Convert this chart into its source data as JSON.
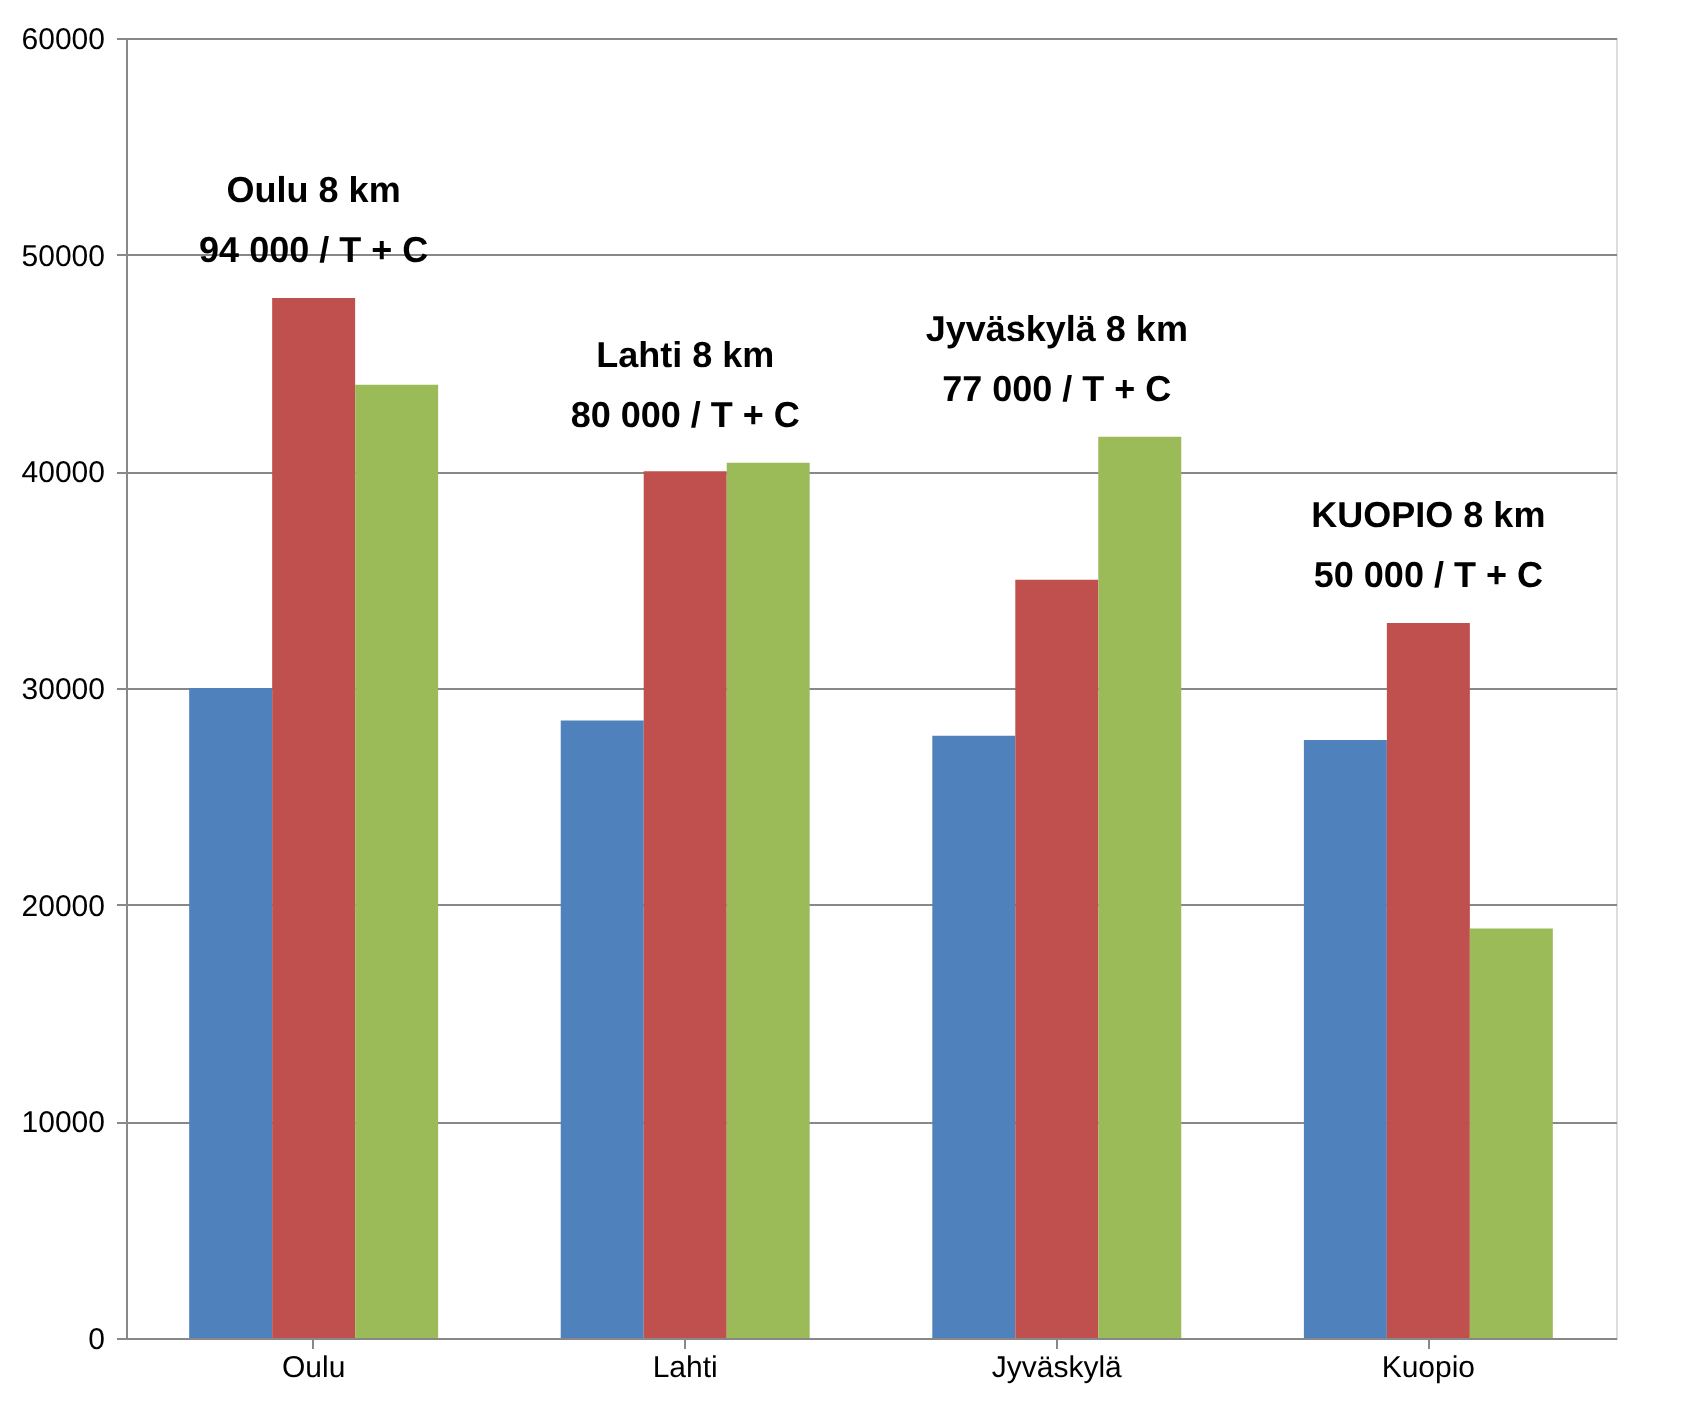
{
  "chart_data": {
    "type": "bar",
    "categories": [
      "Oulu",
      "Lahti",
      "Jyväskylä",
      "Kuopio"
    ],
    "series": [
      {
        "color": "#4f81bd",
        "values": [
          30000,
          28500,
          27800,
          27600
        ]
      },
      {
        "color": "#c0504d",
        "values": [
          48000,
          40000,
          35000,
          33000
        ]
      },
      {
        "color": "#9bbb59",
        "values": [
          44000,
          40400,
          41600,
          18900
        ]
      }
    ],
    "ylim": [
      0,
      60000
    ],
    "yticks": [
      0,
      10000,
      20000,
      30000,
      40000,
      50000,
      60000
    ],
    "grid": "y",
    "annotations": [
      "Oulu 8 km\n94 000 / T + C",
      "Lahti 8 km\n80 000 / T + C",
      "Jyväskylä 8 km\n77 000 / T + C",
      "KUOPIO 8 km\n50 000 / T + C"
    ]
  }
}
